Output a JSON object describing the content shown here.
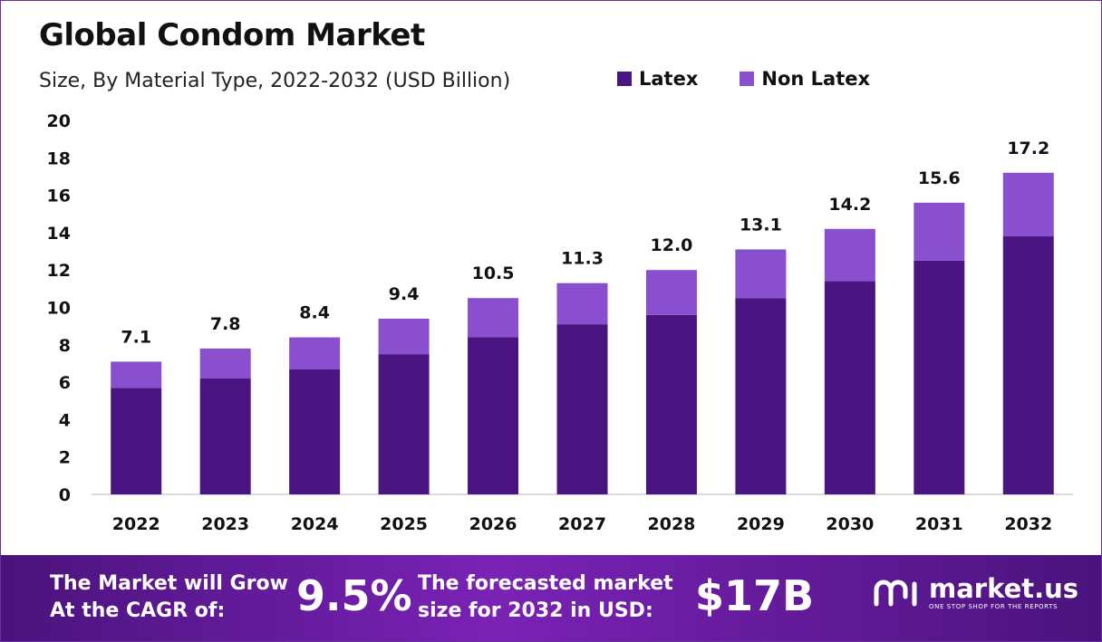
{
  "header": {
    "title": "Global Condom Market",
    "subtitle": "Size, By Material Type, 2022-2032 (USD Billion)"
  },
  "colors": {
    "latex": "#4a1580",
    "non_latex": "#8a4fcf",
    "axis": "#cfcfcf"
  },
  "chart_data": {
    "type": "bar",
    "stacked": true,
    "categories": [
      "2022",
      "2023",
      "2024",
      "2025",
      "2026",
      "2027",
      "2028",
      "2029",
      "2030",
      "2031",
      "2032"
    ],
    "series": [
      {
        "name": "Latex",
        "values": [
          5.7,
          6.2,
          6.7,
          7.5,
          8.4,
          9.1,
          9.6,
          10.5,
          11.4,
          12.5,
          13.8
        ]
      },
      {
        "name": "Non Latex",
        "values": [
          1.4,
          1.6,
          1.7,
          1.9,
          2.1,
          2.2,
          2.4,
          2.6,
          2.8,
          3.1,
          3.4
        ]
      }
    ],
    "totals": [
      "7.1",
      "7.8",
      "8.4",
      "9.4",
      "10.5",
      "11.3",
      "12.0",
      "13.1",
      "14.2",
      "15.6",
      "17.2"
    ],
    "yticks": [
      "0",
      "2",
      "4",
      "6",
      "8",
      "10",
      "12",
      "14",
      "16",
      "18",
      "20"
    ],
    "ylim": [
      0,
      20
    ],
    "grid": false,
    "legend_position": "top"
  },
  "footer": {
    "cagr_label_line1": "The Market will Grow",
    "cagr_label_line2": "At the CAGR of:",
    "cagr_value": "9.5%",
    "forecast_label_line1": "The forecasted market",
    "forecast_label_line2": "size for 2032 in USD:",
    "forecast_value": "$17B",
    "brand_name": "market.us",
    "brand_tagline": "ONE STOP SHOP FOR THE REPORTS"
  }
}
